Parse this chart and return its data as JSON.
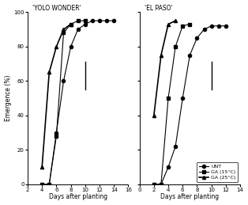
{
  "panel_A": {
    "title": "'YOLO WONDER'",
    "xlim": [
      2,
      16
    ],
    "xticks": [
      2,
      4,
      6,
      8,
      10,
      12,
      14,
      16
    ],
    "ylim": [
      0,
      100
    ],
    "yticks": [
      0,
      20,
      40,
      60,
      80,
      100
    ],
    "unt": {
      "x": [
        4,
        5,
        6,
        7,
        8,
        9,
        10,
        11,
        12,
        13,
        14
      ],
      "y": [
        0,
        0,
        30,
        60,
        80,
        90,
        93,
        95,
        95,
        95,
        95
      ]
    },
    "ga15": {
      "x": [
        4,
        5,
        6,
        7,
        8,
        9,
        10
      ],
      "y": [
        0,
        0,
        28,
        88,
        93,
        95,
        95
      ]
    },
    "ga25": {
      "x": [
        4,
        5,
        6,
        7,
        8
      ],
      "y": [
        10,
        65,
        80,
        90,
        93
      ]
    },
    "lsd_x": 10,
    "lsd_y_center": 63,
    "lsd_half": 8
  },
  "panel_B": {
    "title": "'EL PASO'",
    "xlim": [
      0,
      14
    ],
    "xticks": [
      0,
      2,
      4,
      6,
      8,
      10,
      12,
      14
    ],
    "ylim": [
      0,
      100
    ],
    "yticks": [
      0,
      20,
      40,
      60,
      80,
      100
    ],
    "unt": {
      "x": [
        2,
        3,
        4,
        5,
        6,
        7,
        8,
        9,
        10,
        11,
        12
      ],
      "y": [
        0,
        0,
        10,
        22,
        50,
        75,
        85,
        90,
        92,
        92,
        92
      ]
    },
    "ga15": {
      "x": [
        2,
        3,
        4,
        5,
        6,
        7
      ],
      "y": [
        0,
        0,
        50,
        80,
        92,
        93
      ]
    },
    "ga25": {
      "x": [
        2,
        3,
        4,
        5
      ],
      "y": [
        40,
        75,
        93,
        95
      ]
    },
    "lsd_x": 10,
    "lsd_y_center": 63,
    "lsd_half": 8
  },
  "legend": {
    "unt_label": "UNT",
    "ga15_label": "GA (15°C)",
    "ga25_label": "GA (25°C)"
  },
  "xlabel": "Days after planting",
  "ylabel": "Emergence (%)",
  "line_color": "#000000",
  "background": "#ffffff"
}
